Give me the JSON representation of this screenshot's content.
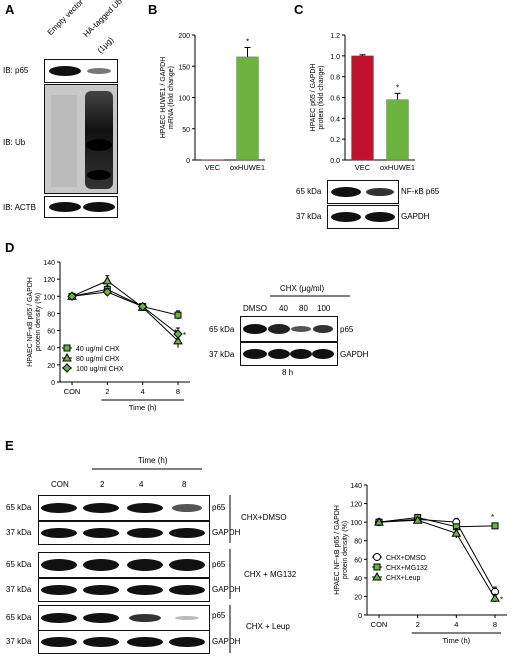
{
  "panels": {
    "A": {
      "label": "A",
      "lanes": [
        "Empty vector",
        "HA-tagged Ub",
        "(1μg)"
      ],
      "ib": [
        "IB: p65",
        "IB: Ub",
        "IB: ACTB"
      ]
    },
    "B": {
      "label": "B"
    },
    "C": {
      "label": "C",
      "blot_markers": [
        "65 kDa",
        "37 kDa"
      ],
      "blot_labels": [
        "NF-κB p65",
        "GAPDH"
      ]
    },
    "D": {
      "label": "D",
      "blot_title": "CHX (μg/ml)",
      "blot_lanes": [
        "DMSO",
        "40",
        "80",
        "100"
      ],
      "blot_markers": [
        "65 kDa",
        "37 kDa"
      ],
      "blot_labels": [
        "p65",
        "GAPDH"
      ],
      "blot_time": "8 h"
    },
    "E": {
      "label": "E",
      "time_header": "Time (h)",
      "lanes": [
        "CON",
        "2",
        "4",
        "8"
      ],
      "marker_65": "65 kDa",
      "marker_37": "37 kDa",
      "band_p65": "p65",
      "band_gapdh": "GAPDH",
      "treatments": [
        "CHX+DMSO",
        "CHX + MG132",
        "CHX + Leup"
      ]
    }
  },
  "chart_data": [
    {
      "panel": "B",
      "type": "bar",
      "categories": [
        "VEC",
        "oxHUWE1"
      ],
      "values": [
        0.5,
        165
      ],
      "errors": [
        0,
        15
      ],
      "colors": [
        "#8b1a2b",
        "#6db33f"
      ],
      "significance": [
        "",
        "*"
      ],
      "ylabel": "HPAEC HUWE1 / GAPDH mRNA (fold change)",
      "ylim": [
        0,
        200
      ],
      "yticks": [
        "0",
        "50",
        "100",
        "150",
        "200"
      ]
    },
    {
      "panel": "C",
      "type": "bar",
      "categories": [
        "VEC",
        "oxHUWE1"
      ],
      "values": [
        1.0,
        0.58
      ],
      "errors": [
        0.01,
        0.06
      ],
      "colors": [
        "#c0122e",
        "#6db33f"
      ],
      "significance": [
        "",
        "*"
      ],
      "ylabel": "HPAEC p65 / GAPDH protein (fold change)",
      "ylim": [
        0,
        1.2
      ],
      "yticks": [
        "0.0",
        "0.2",
        "0.4",
        "0.6",
        "0.8",
        "1.0",
        "1.2"
      ]
    },
    {
      "panel": "D",
      "type": "line",
      "x": [
        "CON",
        "2",
        "4",
        "8"
      ],
      "xlabel": "Time (h)",
      "ylabel": "HPAEC NF-κB p65 / GAPDH protein density (%)",
      "ylim": [
        0,
        140
      ],
      "yticks": [
        "0",
        "20",
        "40",
        "60",
        "80",
        "100",
        "120",
        "140"
      ],
      "series": [
        {
          "name": "40 ug/ml CHX",
          "marker": "square",
          "values": [
            100,
            108,
            88,
            78
          ],
          "errors": [
            2,
            4,
            3,
            5
          ]
        },
        {
          "name": "80 ug/ml CHX",
          "marker": "triangle",
          "values": [
            100,
            118,
            87,
            48
          ],
          "errors": [
            2,
            6,
            3,
            8
          ]
        },
        {
          "name": "100 ug/ml CHX",
          "marker": "diamond",
          "values": [
            100,
            105,
            88,
            56
          ],
          "errors": [
            2,
            4,
            3,
            7
          ]
        }
      ],
      "significance": "*"
    },
    {
      "panel": "E",
      "type": "line",
      "x": [
        "CON",
        "2",
        "4",
        "8"
      ],
      "xlabel": "Time (h)",
      "ylabel": "HPAEC NF-κB p65 / GAPDH protein density (%)",
      "ylim": [
        0,
        140
      ],
      "yticks": [
        "0",
        "20",
        "40",
        "60",
        "80",
        "100",
        "120",
        "140"
      ],
      "series": [
        {
          "name": "CHX+DMSO",
          "marker": "circle",
          "color": "#ffffff",
          "values": [
            100,
            103,
            100,
            25
          ],
          "errors": [
            2,
            3,
            4,
            5
          ]
        },
        {
          "name": "CHX+MG132",
          "marker": "square",
          "color": "#6db33f",
          "values": [
            100,
            105,
            95,
            96
          ],
          "errors": [
            2,
            3,
            3,
            2
          ]
        },
        {
          "name": "CHX+Leup",
          "marker": "triangle",
          "color": "#6db33f",
          "values": [
            100,
            102,
            88,
            18
          ],
          "errors": [
            2,
            3,
            5,
            4
          ]
        }
      ],
      "significance": "*"
    }
  ]
}
